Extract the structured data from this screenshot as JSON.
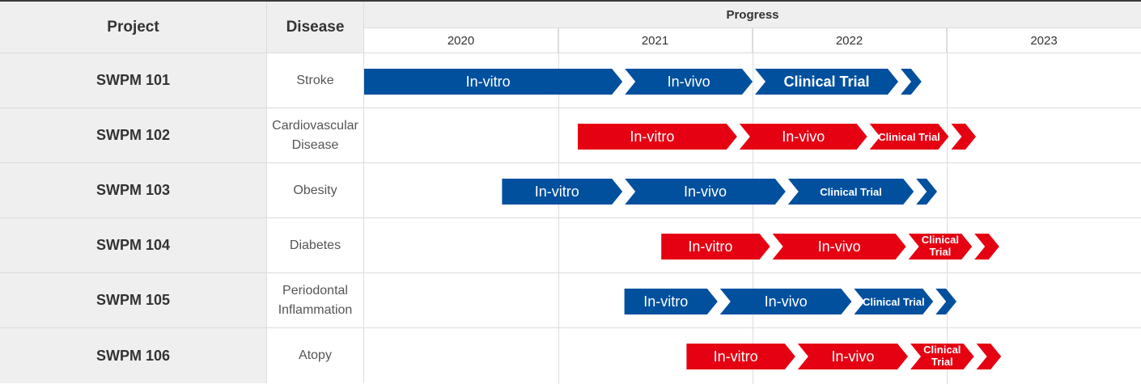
{
  "headers": {
    "project": "Project",
    "disease": "Disease",
    "progress": "Progress"
  },
  "colors": {
    "blue": "#00509e",
    "red": "#e50012",
    "header_bg": "#efefef",
    "grid": "#dcdcdc"
  },
  "chart_data": {
    "type": "table",
    "years": [
      "2020",
      "2021",
      "2022",
      "2023"
    ],
    "x_range": [
      2020,
      2024
    ],
    "rows": [
      {
        "project": "SWPM 101",
        "disease": "Stroke",
        "color": "blue",
        "stages": [
          {
            "label": "In-vitro",
            "start": 2020.0,
            "end": 2021.33
          },
          {
            "label": "In-vivo",
            "start": 2021.33,
            "end": 2022.0
          },
          {
            "label": "Clinical Trial",
            "start": 2022.0,
            "end": 2022.75
          },
          {
            "label": "",
            "start": 2022.75,
            "end": 2022.87
          }
        ]
      },
      {
        "project": "SWPM 102",
        "disease": "Cardiovascular Disease",
        "color": "red",
        "stages": [
          {
            "label": "In-vitro",
            "start": 2021.1,
            "end": 2021.92
          },
          {
            "label": "In-vivo",
            "start": 2021.92,
            "end": 2022.59
          },
          {
            "label": "Clinical Trial",
            "start": 2022.59,
            "end": 2023.01
          },
          {
            "label": "",
            "start": 2023.01,
            "end": 2023.15
          }
        ]
      },
      {
        "project": "SWPM 103",
        "disease": "Obesity",
        "color": "blue",
        "stages": [
          {
            "label": "In-vitro",
            "start": 2020.71,
            "end": 2021.33
          },
          {
            "label": "In-vivo",
            "start": 2021.33,
            "end": 2022.17
          },
          {
            "label": "Clinical Trial",
            "start": 2022.17,
            "end": 2022.83
          },
          {
            "label": "",
            "start": 2022.83,
            "end": 2022.95
          }
        ]
      },
      {
        "project": "SWPM 104",
        "disease": "Diabetes",
        "color": "red",
        "stages": [
          {
            "label": "In-vitro",
            "start": 2021.53,
            "end": 2022.09
          },
          {
            "label": "In-vivo",
            "start": 2022.09,
            "end": 2022.79
          },
          {
            "label": "Clinical Trial",
            "start": 2022.79,
            "end": 2023.13
          },
          {
            "label": "",
            "start": 2023.13,
            "end": 2023.27
          }
        ]
      },
      {
        "project": "SWPM 105",
        "disease": "Periodontal Inflammation",
        "color": "blue",
        "stages": [
          {
            "label": "In-vitro",
            "start": 2021.34,
            "end": 2021.82
          },
          {
            "label": "In-vivo",
            "start": 2021.82,
            "end": 2022.51
          },
          {
            "label": "Clinical Trial",
            "start": 2022.51,
            "end": 2022.93
          },
          {
            "label": "",
            "start": 2022.93,
            "end": 2023.05
          }
        ]
      },
      {
        "project": "SWPM 106",
        "disease": "Atopy",
        "color": "red",
        "stages": [
          {
            "label": "In-vitro",
            "start": 2021.66,
            "end": 2022.22
          },
          {
            "label": "In-vivo",
            "start": 2022.22,
            "end": 2022.8
          },
          {
            "label": "Clinical Trial",
            "start": 2022.8,
            "end": 2023.14
          },
          {
            "label": "",
            "start": 2023.14,
            "end": 2023.28
          }
        ]
      }
    ]
  }
}
